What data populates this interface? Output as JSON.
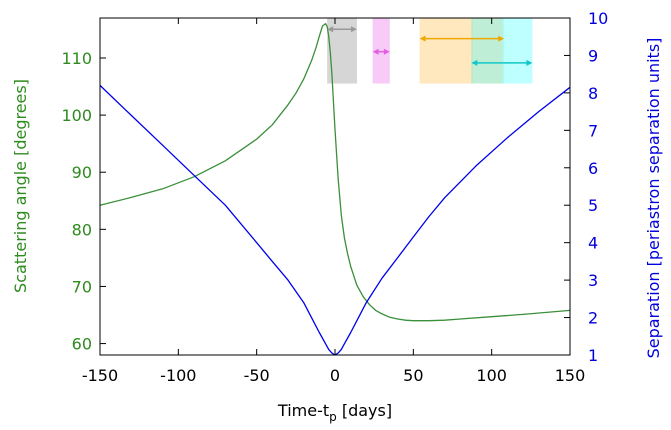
{
  "chart_data": {
    "type": "line",
    "xlabel": "Time-t",
    "xlabel_sub": "p",
    "xlabel_unit": " [days]",
    "ylabel_left": "Scattering angle [degrees]",
    "ylabel_right": "Separation [periastron separation units]",
    "xlim": [
      -150,
      150
    ],
    "ylim_left": [
      58,
      117
    ],
    "ylim_right": [
      1,
      10
    ],
    "x_ticks": [
      -150,
      -100,
      -50,
      0,
      50,
      100,
      150
    ],
    "y_left_ticks": [
      60,
      70,
      80,
      90,
      100,
      110
    ],
    "y_right_ticks": [
      1,
      2,
      3,
      4,
      5,
      6,
      7,
      8,
      9,
      10
    ],
    "colors": {
      "left_axis": "#2e8b1e",
      "right_axis": "#0000dd",
      "scattering": "#3a8f3a",
      "separation": "#0000ee"
    },
    "series": [
      {
        "axis": "left",
        "color": "#3a8f3a",
        "x": [
          -150,
          -130,
          -110,
          -90,
          -70,
          -50,
          -40,
          -30,
          -25,
          -20,
          -15,
          -12,
          -10,
          -8,
          -6,
          -5,
          -4,
          -3,
          -2,
          -1,
          0,
          2,
          4,
          6,
          8,
          10,
          14,
          18,
          22,
          26,
          30,
          35,
          40,
          45,
          50,
          60,
          70,
          80,
          100,
          120,
          150
        ],
        "y": [
          84.2,
          85.6,
          87.1,
          89.2,
          92.0,
          95.8,
          98.3,
          101.8,
          103.8,
          106.3,
          109.5,
          111.9,
          113.8,
          115.6,
          116.0,
          115.5,
          113.8,
          111.0,
          107.2,
          102.5,
          97.5,
          89.0,
          82.5,
          78.5,
          75.8,
          73.5,
          70.2,
          68.2,
          66.8,
          65.8,
          65.2,
          64.6,
          64.3,
          64.1,
          64.0,
          64.0,
          64.1,
          64.3,
          64.7,
          65.1,
          65.8
        ]
      },
      {
        "axis": "right",
        "color": "#0000ee",
        "x": [
          -150,
          -130,
          -110,
          -90,
          -70,
          -50,
          -40,
          -30,
          -20,
          -15,
          -10,
          -6,
          -4,
          -2,
          0,
          2,
          4,
          6,
          10,
          15,
          20,
          30,
          40,
          50,
          60,
          70,
          90,
          110,
          130,
          150
        ],
        "y": [
          8.2,
          7.4,
          6.6,
          5.8,
          5.0,
          4.0,
          3.5,
          3.0,
          2.4,
          2.0,
          1.6,
          1.3,
          1.15,
          1.05,
          1.0,
          1.05,
          1.15,
          1.3,
          1.6,
          2.0,
          2.4,
          3.05,
          3.6,
          4.15,
          4.7,
          5.2,
          6.05,
          6.8,
          7.5,
          8.15
        ]
      }
    ],
    "bands": [
      {
        "x0": -5,
        "x1": 14,
        "color": "#c8c8c8"
      },
      {
        "x0": 24,
        "x1": 35,
        "color": "#f5b8f5"
      },
      {
        "x0": 54,
        "x1": 88,
        "color": "#ffe0a8"
      },
      {
        "x0": 87,
        "x1": 108,
        "color": "#a8e8c8"
      },
      {
        "x0": 107,
        "x1": 126,
        "color": "#a8ffff"
      }
    ],
    "arrows": [
      {
        "x0": -5,
        "x1": 14,
        "y": 9.7,
        "color": "#999999"
      },
      {
        "x0": 24,
        "x1": 35,
        "y": 9.1,
        "color": "#e060e0"
      },
      {
        "x0": 54,
        "x1": 108,
        "y": 9.45,
        "color": "#f0a800"
      },
      {
        "x0": 87,
        "x1": 126,
        "y": 8.8,
        "color": "#10c8c8"
      }
    ]
  }
}
